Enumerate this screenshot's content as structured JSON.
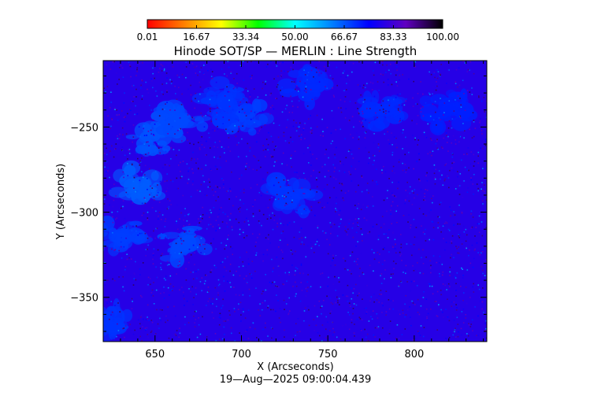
{
  "chart_data": {
    "type": "heatmap",
    "title": "Hinode SOT/SP — MERLIN : Line Strength",
    "xlabel": "X (Arcseconds)",
    "ylabel": "Y (Arcseconds)",
    "timestamp": "19—Aug—2025 09:00:04.439",
    "xlim": [
      620,
      842
    ],
    "ylim": [
      -376,
      -211
    ],
    "x_ticks": [
      {
        "value": 650,
        "label": "650"
      },
      {
        "value": 700,
        "label": "700"
      },
      {
        "value": 750,
        "label": "750"
      },
      {
        "value": 800,
        "label": "800"
      }
    ],
    "y_ticks": [
      {
        "value": -250,
        "label": "−250"
      },
      {
        "value": -300,
        "label": "−300"
      },
      {
        "value": -350,
        "label": "−350"
      }
    ],
    "colorbar": {
      "min": 0.01,
      "max": 100.0,
      "ticks": [
        {
          "value": 0.01,
          "label": "0.01"
        },
        {
          "value": 16.67,
          "label": "16.67"
        },
        {
          "value": 33.34,
          "label": "33.34"
        },
        {
          "value": 50.0,
          "label": "50.00"
        },
        {
          "value": 66.67,
          "label": "66.67"
        },
        {
          "value": 83.33,
          "label": "83.33"
        },
        {
          "value": 100.0,
          "label": "100.00"
        }
      ],
      "colormap": [
        "#ff0000",
        "#ff8000",
        "#ffff00",
        "#00ff00",
        "#00ffff",
        "#0080ff",
        "#0000ff",
        "#6000c0",
        "#000000"
      ]
    },
    "field": {
      "background_level": 80,
      "bright_regions": [
        {
          "x": 650,
          "y": -255,
          "level": 67
        },
        {
          "x": 640,
          "y": -285,
          "level": 66
        },
        {
          "x": 665,
          "y": -245,
          "level": 68
        },
        {
          "x": 700,
          "y": -245,
          "level": 69
        },
        {
          "x": 690,
          "y": -235,
          "level": 70
        },
        {
          "x": 665,
          "y": -320,
          "level": 68
        },
        {
          "x": 630,
          "y": -315,
          "level": 69
        },
        {
          "x": 625,
          "y": -365,
          "level": 70
        },
        {
          "x": 728,
          "y": -290,
          "level": 70
        },
        {
          "x": 780,
          "y": -240,
          "level": 71
        },
        {
          "x": 820,
          "y": -240,
          "level": 72
        },
        {
          "x": 740,
          "y": -225,
          "level": 71
        }
      ]
    }
  }
}
